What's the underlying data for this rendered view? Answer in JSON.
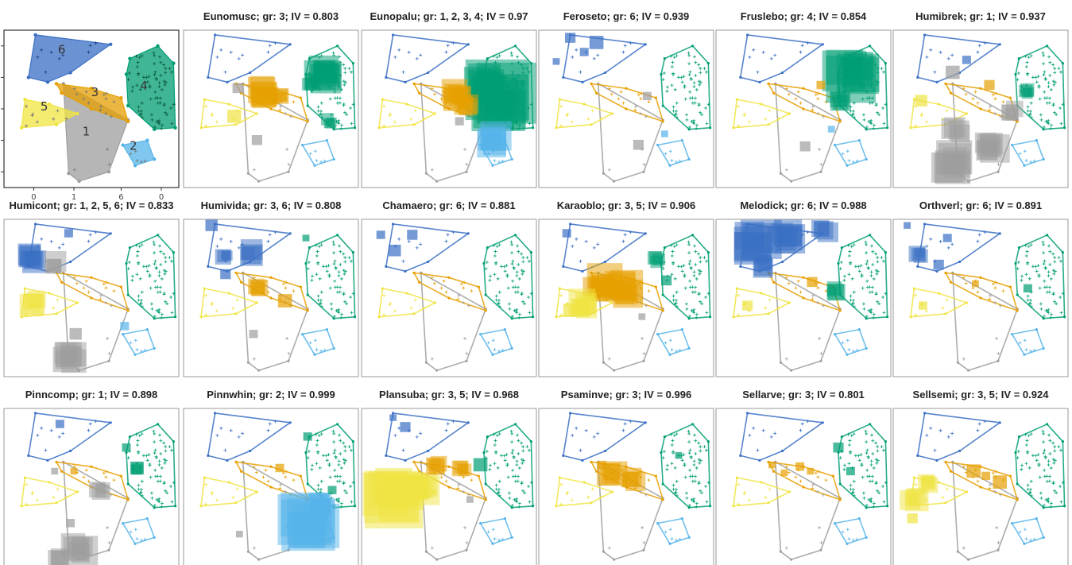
{
  "chart_data": {
    "type": "scatter",
    "groups": [
      {
        "label": "1",
        "color": "#9E9E9E"
      },
      {
        "label": "2",
        "color": "#56B4E9"
      },
      {
        "label": "3",
        "color": "#E69F00"
      },
      {
        "label": "4",
        "color": "#009E73"
      },
      {
        "label": "5",
        "color": "#F0E442"
      },
      {
        "label": "6",
        "color": "#3A6FC4"
      }
    ],
    "x_ticks": [
      "0",
      "1",
      "6",
      "0"
    ],
    "panels": [
      {
        "title": "",
        "species": "",
        "groups_text": "",
        "iv": "",
        "blobs": []
      },
      {
        "title": "Eunomusc; gr: 3; IV = 0.803",
        "species": "Eunomusc",
        "groups_text": "3",
        "iv": "0.803",
        "blobs": [
          {
            "g": "3",
            "x": 0.46,
            "y": 0.4,
            "s": 0.18
          },
          {
            "g": "4",
            "x": 0.79,
            "y": 0.28,
            "s": 0.2
          },
          {
            "g": "4",
            "x": 0.73,
            "y": 0.33,
            "s": 0.1
          },
          {
            "g": "3",
            "x": 0.55,
            "y": 0.43,
            "s": 0.1
          },
          {
            "g": "5",
            "x": 0.29,
            "y": 0.55,
            "s": 0.08
          },
          {
            "g": "1",
            "x": 0.42,
            "y": 0.7,
            "s": 0.06
          },
          {
            "g": "4",
            "x": 0.84,
            "y": 0.58,
            "s": 0.1
          },
          {
            "g": "1",
            "x": 0.31,
            "y": 0.37,
            "s": 0.06
          }
        ]
      },
      {
        "title": "Eunopalu; gr: 1, 2, 3, 4; IV = 0.97",
        "species": "Eunopalu",
        "groups_text": "1, 2, 3, 4",
        "iv": "0.97",
        "blobs": [
          {
            "g": "4",
            "x": 0.82,
            "y": 0.45,
            "s": 0.4
          },
          {
            "g": "4",
            "x": 0.7,
            "y": 0.35,
            "s": 0.22
          },
          {
            "g": "2",
            "x": 0.74,
            "y": 0.7,
            "s": 0.18
          },
          {
            "g": "3",
            "x": 0.55,
            "y": 0.42,
            "s": 0.16
          },
          {
            "g": "3",
            "x": 0.6,
            "y": 0.48,
            "s": 0.12
          },
          {
            "g": "1",
            "x": 0.56,
            "y": 0.58,
            "s": 0.05
          }
        ]
      },
      {
        "title": "Feroseto; gr: 6; IV = 0.939",
        "species": "Feroseto",
        "groups_text": "6",
        "iv": "0.939",
        "blobs": [
          {
            "g": "6",
            "x": 0.18,
            "y": 0.05,
            "s": 0.06
          },
          {
            "g": "6",
            "x": 0.33,
            "y": 0.08,
            "s": 0.08
          },
          {
            "g": "6",
            "x": 0.26,
            "y": 0.14,
            "s": 0.05
          },
          {
            "g": "6",
            "x": 0.1,
            "y": 0.2,
            "s": 0.04
          },
          {
            "g": "1",
            "x": 0.62,
            "y": 0.42,
            "s": 0.05
          },
          {
            "g": "1",
            "x": 0.57,
            "y": 0.73,
            "s": 0.06
          },
          {
            "g": "2",
            "x": 0.72,
            "y": 0.66,
            "s": 0.04
          }
        ]
      },
      {
        "title": "Fruslebo; gr: 4; IV = 0.854",
        "species": "Fruslebo",
        "groups_text": "4",
        "iv": "0.854",
        "blobs": [
          {
            "g": "4",
            "x": 0.78,
            "y": 0.28,
            "s": 0.3
          },
          {
            "g": "4",
            "x": 0.72,
            "y": 0.45,
            "s": 0.12
          },
          {
            "g": "1",
            "x": 0.51,
            "y": 0.74,
            "s": 0.06
          },
          {
            "g": "3",
            "x": 0.6,
            "y": 0.35,
            "s": 0.05
          },
          {
            "g": "2",
            "x": 0.66,
            "y": 0.63,
            "s": 0.04
          }
        ]
      },
      {
        "title": "Humibrek; gr: 1; IV = 0.937",
        "species": "Humibrek",
        "groups_text": "1",
        "iv": "0.937",
        "blobs": [
          {
            "g": "1",
            "x": 0.33,
            "y": 0.85,
            "s": 0.22
          },
          {
            "g": "1",
            "x": 0.55,
            "y": 0.74,
            "s": 0.18
          },
          {
            "g": "1",
            "x": 0.36,
            "y": 0.64,
            "s": 0.14
          },
          {
            "g": "1",
            "x": 0.68,
            "y": 0.52,
            "s": 0.1
          },
          {
            "g": "1",
            "x": 0.34,
            "y": 0.27,
            "s": 0.08
          },
          {
            "g": "6",
            "x": 0.42,
            "y": 0.19,
            "s": 0.05
          },
          {
            "g": "4",
            "x": 0.76,
            "y": 0.39,
            "s": 0.09
          },
          {
            "g": "3",
            "x": 0.55,
            "y": 0.35,
            "s": 0.06
          },
          {
            "g": "5",
            "x": 0.16,
            "y": 0.45,
            "s": 0.07
          }
        ]
      },
      {
        "title": "Humicont; gr: 1, 2, 5, 6; IV = 0.833",
        "species": "Humicont",
        "groups_text": "1, 2, 5, 6",
        "iv": "0.833",
        "blobs": [
          {
            "g": "6",
            "x": 0.15,
            "y": 0.25,
            "s": 0.16
          },
          {
            "g": "1",
            "x": 0.28,
            "y": 0.28,
            "s": 0.14
          },
          {
            "g": "5",
            "x": 0.17,
            "y": 0.53,
            "s": 0.14
          },
          {
            "g": "1",
            "x": 0.37,
            "y": 0.88,
            "s": 0.18
          },
          {
            "g": "1",
            "x": 0.41,
            "y": 0.73,
            "s": 0.07
          },
          {
            "g": "2",
            "x": 0.69,
            "y": 0.68,
            "s": 0.05
          },
          {
            "g": "6",
            "x": 0.37,
            "y": 0.09,
            "s": 0.05
          }
        ]
      },
      {
        "title": "Humivida; gr: 3, 6; IV = 0.808",
        "species": "Humivida",
        "groups_text": "3, 6",
        "iv": "0.808",
        "blobs": [
          {
            "g": "6",
            "x": 0.37,
            "y": 0.22,
            "s": 0.14
          },
          {
            "g": "6",
            "x": 0.24,
            "y": 0.24,
            "s": 0.1
          },
          {
            "g": "6",
            "x": 0.16,
            "y": 0.04,
            "s": 0.07
          },
          {
            "g": "6",
            "x": 0.24,
            "y": 0.35,
            "s": 0.06
          },
          {
            "g": "3",
            "x": 0.43,
            "y": 0.44,
            "s": 0.12
          },
          {
            "g": "3",
            "x": 0.58,
            "y": 0.52,
            "s": 0.08
          },
          {
            "g": "1",
            "x": 0.4,
            "y": 0.73,
            "s": 0.05
          },
          {
            "g": "4",
            "x": 0.7,
            "y": 0.12,
            "s": 0.04
          }
        ]
      },
      {
        "title": "Chamaero; gr: 6; IV = 0.881",
        "species": "Chamaero",
        "groups_text": "6",
        "iv": "0.881",
        "blobs": [
          {
            "g": "6",
            "x": 0.19,
            "y": 0.2,
            "s": 0.07
          },
          {
            "g": "6",
            "x": 0.29,
            "y": 0.1,
            "s": 0.06
          },
          {
            "g": "6",
            "x": 0.11,
            "y": 0.1,
            "s": 0.05
          }
        ]
      },
      {
        "title": "Karaoblo; gr: 3, 5; IV = 0.906",
        "species": "Karaoblo",
        "groups_text": "3, 5",
        "iv": "0.906",
        "blobs": [
          {
            "g": "3",
            "x": 0.36,
            "y": 0.42,
            "s": 0.22
          },
          {
            "g": "3",
            "x": 0.5,
            "y": 0.46,
            "s": 0.2
          },
          {
            "g": "5",
            "x": 0.26,
            "y": 0.55,
            "s": 0.16
          },
          {
            "g": "5",
            "x": 0.18,
            "y": 0.58,
            "s": 0.08
          },
          {
            "g": "4",
            "x": 0.67,
            "y": 0.26,
            "s": 0.1
          },
          {
            "g": "4",
            "x": 0.73,
            "y": 0.39,
            "s": 0.06
          },
          {
            "g": "6",
            "x": 0.16,
            "y": 0.09,
            "s": 0.05
          },
          {
            "g": "1",
            "x": 0.59,
            "y": 0.62,
            "s": 0.04
          }
        ]
      },
      {
        "title": "Melodick; gr: 6; IV = 0.988",
        "species": "Melodick",
        "groups_text": "6",
        "iv": "0.988",
        "blobs": [
          {
            "g": "6",
            "x": 0.22,
            "y": 0.15,
            "s": 0.26
          },
          {
            "g": "6",
            "x": 0.4,
            "y": 0.12,
            "s": 0.18
          },
          {
            "g": "6",
            "x": 0.62,
            "y": 0.08,
            "s": 0.14
          },
          {
            "g": "6",
            "x": 0.28,
            "y": 0.3,
            "s": 0.12
          },
          {
            "g": "4",
            "x": 0.68,
            "y": 0.45,
            "s": 0.1
          },
          {
            "g": "3",
            "x": 0.55,
            "y": 0.4,
            "s": 0.06
          },
          {
            "g": "5",
            "x": 0.18,
            "y": 0.55,
            "s": 0.06
          }
        ]
      },
      {
        "title": "Orthverl; gr: 6; IV = 0.891",
        "species": "Orthverl",
        "groups_text": "6",
        "iv": "0.891",
        "blobs": [
          {
            "g": "6",
            "x": 0.15,
            "y": 0.22,
            "s": 0.1
          },
          {
            "g": "6",
            "x": 0.26,
            "y": 0.29,
            "s": 0.06
          },
          {
            "g": "6",
            "x": 0.31,
            "y": 0.12,
            "s": 0.05
          },
          {
            "g": "6",
            "x": 0.08,
            "y": 0.04,
            "s": 0.04
          },
          {
            "g": "5",
            "x": 0.17,
            "y": 0.55,
            "s": 0.05
          },
          {
            "g": "4",
            "x": 0.77,
            "y": 0.44,
            "s": 0.05
          },
          {
            "g": "3",
            "x": 0.47,
            "y": 0.41,
            "s": 0.04
          }
        ]
      },
      {
        "title": "Pinncomp; gr: 1; IV = 0.898",
        "species": "Pinncomp",
        "groups_text": "1",
        "iv": "0.898",
        "blobs": [
          {
            "g": "1",
            "x": 0.42,
            "y": 0.9,
            "s": 0.18
          },
          {
            "g": "1",
            "x": 0.32,
            "y": 0.95,
            "s": 0.12
          },
          {
            "g": "1",
            "x": 0.55,
            "y": 0.53,
            "s": 0.11
          },
          {
            "g": "1",
            "x": 0.38,
            "y": 0.73,
            "s": 0.05
          },
          {
            "g": "1",
            "x": 0.29,
            "y": 0.4,
            "s": 0.04
          },
          {
            "g": "4",
            "x": 0.76,
            "y": 0.38,
            "s": 0.09
          },
          {
            "g": "4",
            "x": 0.7,
            "y": 0.25,
            "s": 0.05
          },
          {
            "g": "6",
            "x": 0.32,
            "y": 0.1,
            "s": 0.05
          },
          {
            "g": "3",
            "x": 0.4,
            "y": 0.4,
            "s": 0.04
          }
        ]
      },
      {
        "title": "Pinnwhin; gr: 2; IV = 0.999",
        "species": "Pinnwhin",
        "groups_text": "2",
        "iv": "0.999",
        "blobs": [
          {
            "g": "2",
            "x": 0.72,
            "y": 0.74,
            "s": 0.34
          },
          {
            "g": "2",
            "x": 0.78,
            "y": 0.62,
            "s": 0.12
          },
          {
            "g": "4",
            "x": 0.71,
            "y": 0.18,
            "s": 0.05
          },
          {
            "g": "4",
            "x": 0.85,
            "y": 0.52,
            "s": 0.05
          },
          {
            "g": "3",
            "x": 0.55,
            "y": 0.38,
            "s": 0.05
          },
          {
            "g": "1",
            "x": 0.32,
            "y": 0.8,
            "s": 0.04
          }
        ]
      },
      {
        "title": "Plansuba; gr: 3, 5; IV = 0.968",
        "species": "Plansuba",
        "groups_text": "3, 5",
        "iv": "0.968",
        "blobs": [
          {
            "g": "5",
            "x": 0.2,
            "y": 0.55,
            "s": 0.36
          },
          {
            "g": "5",
            "x": 0.33,
            "y": 0.5,
            "s": 0.18
          },
          {
            "g": "3",
            "x": 0.43,
            "y": 0.36,
            "s": 0.12
          },
          {
            "g": "3",
            "x": 0.58,
            "y": 0.38,
            "s": 0.1
          },
          {
            "g": "4",
            "x": 0.68,
            "y": 0.36,
            "s": 0.08
          },
          {
            "g": "6",
            "x": 0.25,
            "y": 0.12,
            "s": 0.06
          },
          {
            "g": "6",
            "x": 0.18,
            "y": 0.06,
            "s": 0.04
          },
          {
            "g": "1",
            "x": 0.62,
            "y": 0.58,
            "s": 0.04
          }
        ]
      },
      {
        "title": "Psaminve; gr: 3; IV = 0.996",
        "species": "Psaminve",
        "groups_text": "3",
        "iv": "0.996",
        "blobs": [
          {
            "g": "3",
            "x": 0.42,
            "y": 0.42,
            "s": 0.14
          },
          {
            "g": "3",
            "x": 0.54,
            "y": 0.46,
            "s": 0.12
          },
          {
            "g": "3",
            "x": 0.36,
            "y": 0.36,
            "s": 0.05
          },
          {
            "g": "4",
            "x": 0.8,
            "y": 0.3,
            "s": 0.04
          }
        ]
      },
      {
        "title": "Sellarve; gr: 3; IV = 0.801",
        "species": "Sellarve",
        "groups_text": "3",
        "iv": "0.801",
        "blobs": [
          {
            "g": "3",
            "x": 0.32,
            "y": 0.36,
            "s": 0.04
          },
          {
            "g": "3",
            "x": 0.39,
            "y": 0.41,
            "s": 0.04
          },
          {
            "g": "3",
            "x": 0.48,
            "y": 0.37,
            "s": 0.05
          },
          {
            "g": "3",
            "x": 0.54,
            "y": 0.4,
            "s": 0.04
          },
          {
            "g": "4",
            "x": 0.7,
            "y": 0.25,
            "s": 0.06
          },
          {
            "g": "4",
            "x": 0.77,
            "y": 0.4,
            "s": 0.05
          }
        ]
      },
      {
        "title": "Sellsemi; gr: 3, 5; IV = 0.924",
        "species": "Sellsemi",
        "groups_text": "3, 5",
        "iv": "0.924",
        "blobs": [
          {
            "g": "5",
            "x": 0.12,
            "y": 0.58,
            "s": 0.14
          },
          {
            "g": "5",
            "x": 0.2,
            "y": 0.48,
            "s": 0.1
          },
          {
            "g": "5",
            "x": 0.11,
            "y": 0.7,
            "s": 0.06
          },
          {
            "g": "3",
            "x": 0.46,
            "y": 0.4,
            "s": 0.08
          },
          {
            "g": "3",
            "x": 0.61,
            "y": 0.47,
            "s": 0.08
          },
          {
            "g": "3",
            "x": 0.53,
            "y": 0.43,
            "s": 0.05
          }
        ]
      }
    ]
  }
}
